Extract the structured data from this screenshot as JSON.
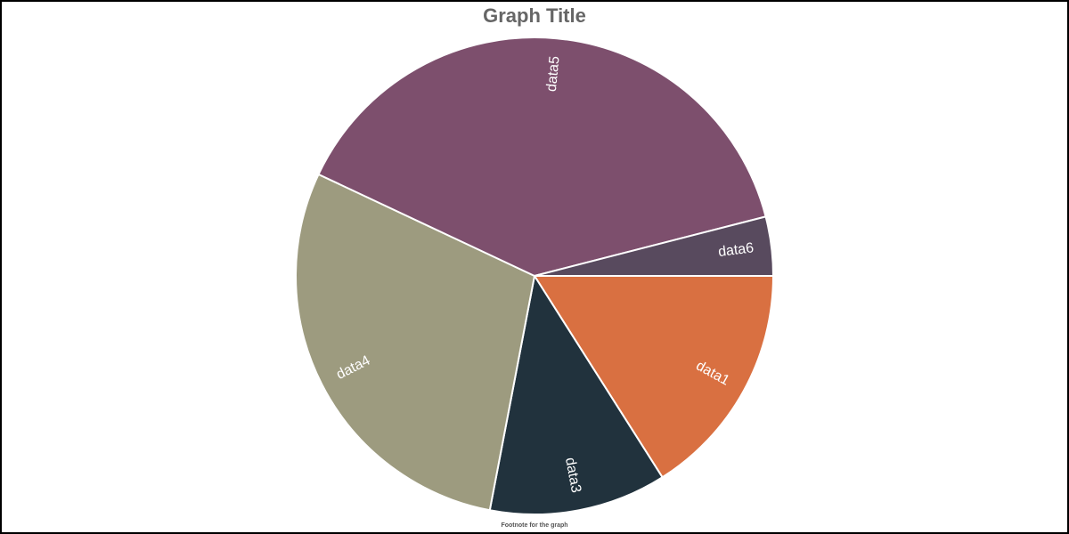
{
  "chart_data": {
    "type": "pie",
    "title": "Graph Title",
    "footnote": "Footnote for the graph",
    "categories": [
      "data1",
      "data3",
      "data4",
      "data5",
      "data6"
    ],
    "values": [
      16,
      12,
      29,
      39,
      4
    ],
    "colors": [
      "#d97041",
      "#21323d",
      "#9d9b7f",
      "#7d4f6d",
      "#584a5e"
    ],
    "legend": "none",
    "label_color": "#ffffff",
    "slice_border_color": "#ffffff"
  }
}
